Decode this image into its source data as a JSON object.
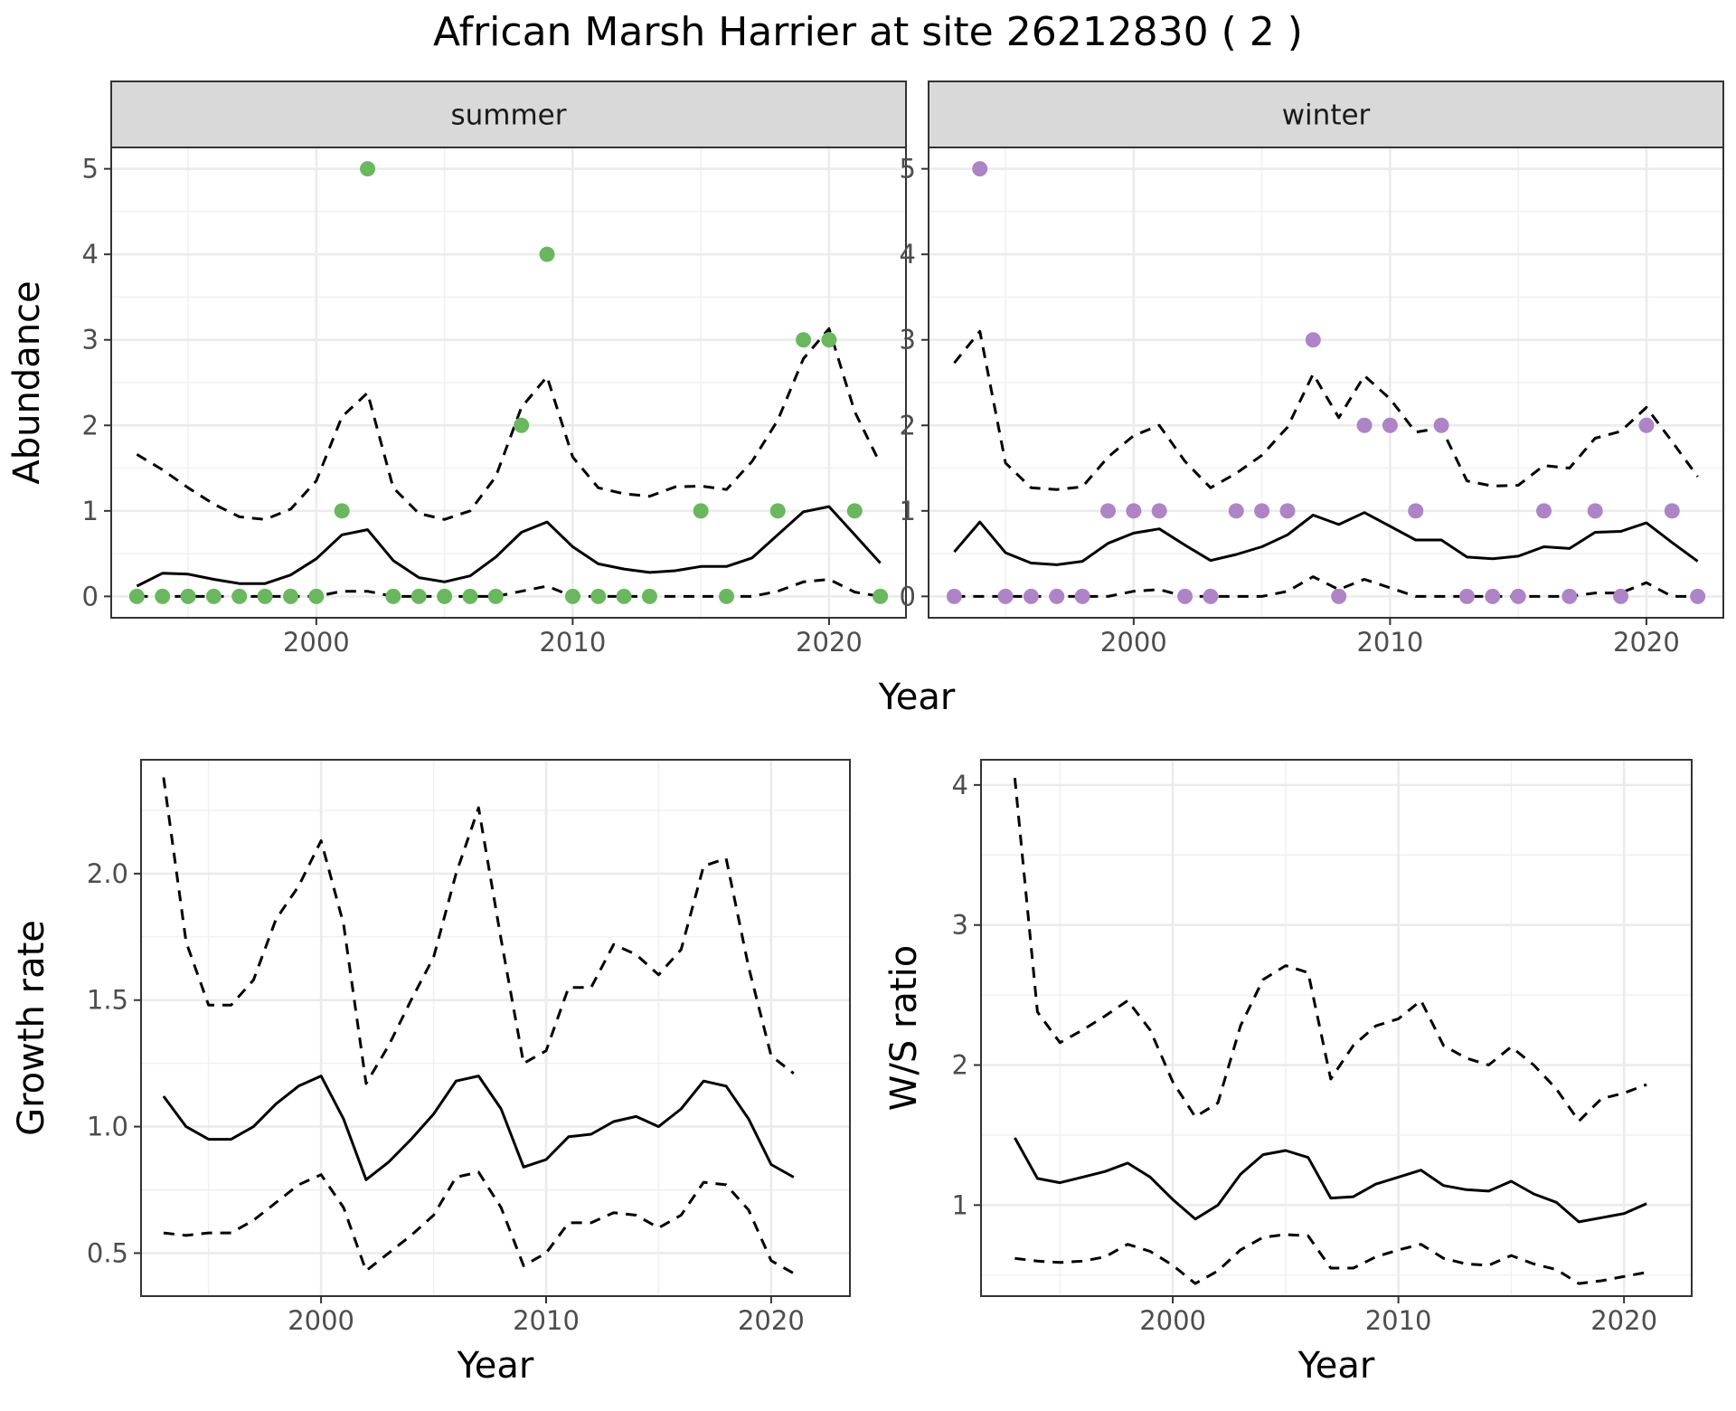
{
  "figure": {
    "title": "African Marsh Harrier at site 26212830 ( 2 )"
  },
  "chart_data": [
    {
      "type": "scatter",
      "panel": "summer",
      "strip_label": "summer",
      "xlabel": "Year",
      "ylabel": "Abundance",
      "xlim": [
        1992,
        2023
      ],
      "ylim": [
        -0.25,
        5.25
      ],
      "xticks": [
        2000,
        2010,
        2020
      ],
      "yticks": [
        0,
        1,
        2,
        3,
        4,
        5
      ],
      "point_color": "#6ab75f",
      "grid": true,
      "points": {
        "x": [
          1993,
          1994,
          1995,
          1996,
          1997,
          1998,
          1999,
          2000,
          2001,
          2002,
          2003,
          2004,
          2005,
          2006,
          2007,
          2008,
          2009,
          2010,
          2011,
          2012,
          2013,
          2015,
          2016,
          2018,
          2019,
          2020,
          2021,
          2022
        ],
        "y": [
          0,
          0,
          0,
          0,
          0,
          0,
          0,
          0,
          1,
          5,
          0,
          0,
          0,
          0,
          0,
          2,
          4,
          0,
          0,
          0,
          0,
          1,
          0,
          1,
          3,
          3,
          1,
          0
        ]
      },
      "lines": {
        "x": [
          1993,
          1994,
          1995,
          1996,
          1997,
          1998,
          1999,
          2000,
          2001,
          2002,
          2003,
          2004,
          2005,
          2006,
          2007,
          2008,
          2009,
          2010,
          2011,
          2012,
          2013,
          2014,
          2015,
          2016,
          2017,
          2018,
          2019,
          2020,
          2021,
          2022
        ],
        "mean": [
          0.12,
          0.27,
          0.26,
          0.2,
          0.15,
          0.15,
          0.25,
          0.44,
          0.72,
          0.78,
          0.42,
          0.22,
          0.17,
          0.24,
          0.46,
          0.75,
          0.87,
          0.58,
          0.38,
          0.32,
          0.28,
          0.3,
          0.35,
          0.35,
          0.45,
          0.72,
          0.99,
          1.05,
          0.72,
          0.39
        ],
        "upper": [
          1.66,
          1.48,
          1.27,
          1.08,
          0.93,
          0.9,
          1.02,
          1.35,
          2.1,
          2.38,
          1.27,
          0.97,
          0.9,
          1.0,
          1.4,
          2.21,
          2.57,
          1.63,
          1.27,
          1.2,
          1.17,
          1.28,
          1.29,
          1.25,
          1.58,
          2.06,
          2.78,
          3.13,
          2.16,
          1.55
        ],
        "lower": [
          0,
          0,
          0,
          0,
          0,
          0,
          0,
          0,
          0.06,
          0.06,
          0,
          0,
          0,
          0,
          0,
          0.06,
          0.12,
          0,
          0,
          0,
          0,
          0,
          0,
          0,
          0,
          0.06,
          0.17,
          0.2,
          0.05,
          0
        ]
      }
    },
    {
      "type": "scatter",
      "panel": "winter",
      "strip_label": "winter",
      "xlabel": "Year",
      "ylabel": "Abundance",
      "xlim": [
        1992,
        2023
      ],
      "ylim": [
        -0.25,
        5.25
      ],
      "xticks": [
        2000,
        2010,
        2020
      ],
      "yticks": [
        0,
        1,
        2,
        3,
        4,
        5
      ],
      "point_color": "#ad84c6",
      "grid": true,
      "points": {
        "x": [
          1993,
          1994,
          1995,
          1996,
          1997,
          1998,
          1999,
          2000,
          2001,
          2002,
          2003,
          2004,
          2005,
          2006,
          2007,
          2008,
          2009,
          2010,
          2011,
          2012,
          2013,
          2014,
          2015,
          2016,
          2017,
          2018,
          2019,
          2020,
          2021,
          2022
        ],
        "y": [
          0,
          5,
          0,
          0,
          0,
          0,
          1,
          1,
          1,
          0,
          0,
          1,
          1,
          1,
          3,
          0,
          2,
          2,
          1,
          2,
          0,
          0,
          0,
          1,
          0,
          1,
          0,
          2,
          1,
          0
        ]
      },
      "lines": {
        "x": [
          1993,
          1994,
          1995,
          1996,
          1997,
          1998,
          1999,
          2000,
          2001,
          2002,
          2003,
          2004,
          2005,
          2006,
          2007,
          2008,
          2009,
          2010,
          2011,
          2012,
          2013,
          2014,
          2015,
          2016,
          2017,
          2018,
          2019,
          2020,
          2021,
          2022
        ],
        "mean": [
          0.52,
          0.87,
          0.51,
          0.39,
          0.37,
          0.41,
          0.62,
          0.74,
          0.79,
          0.6,
          0.42,
          0.49,
          0.58,
          0.72,
          0.95,
          0.84,
          0.98,
          0.82,
          0.66,
          0.66,
          0.46,
          0.44,
          0.47,
          0.58,
          0.56,
          0.75,
          0.76,
          0.86,
          0.63,
          0.41
        ],
        "upper": [
          2.73,
          3.1,
          1.56,
          1.27,
          1.25,
          1.28,
          1.63,
          1.88,
          2.0,
          1.58,
          1.27,
          1.44,
          1.65,
          1.98,
          2.6,
          2.09,
          2.58,
          2.31,
          1.92,
          1.97,
          1.35,
          1.29,
          1.3,
          1.53,
          1.5,
          1.85,
          1.93,
          2.21,
          1.81,
          1.4
        ],
        "lower": [
          0,
          0,
          0,
          0,
          0,
          0,
          0,
          0.06,
          0.08,
          0,
          0,
          0,
          0,
          0.06,
          0.23,
          0.08,
          0.2,
          0.1,
          0,
          0,
          0,
          0,
          0,
          0,
          0,
          0.04,
          0.04,
          0.16,
          0,
          0
        ]
      }
    },
    {
      "type": "line",
      "panel": "growth",
      "xlabel": "Year",
      "ylabel": "Growth rate",
      "xlim": [
        1992,
        2023.5
      ],
      "ylim": [
        0.33,
        2.45
      ],
      "xticks": [
        2000,
        2010,
        2020
      ],
      "yticks": [
        0.5,
        1.0,
        1.5,
        2.0
      ],
      "ytick_labels": [
        "0.5",
        "1.0",
        "1.5",
        "2.0"
      ],
      "grid": true,
      "lines": {
        "x": [
          1993,
          1994,
          1995,
          1996,
          1997,
          1998,
          1999,
          2000,
          2001,
          2002,
          2003,
          2004,
          2005,
          2006,
          2007,
          2008,
          2009,
          2010,
          2011,
          2012,
          2013,
          2014,
          2015,
          2016,
          2017,
          2018,
          2019,
          2020,
          2021
        ],
        "mean": [
          1.12,
          1.0,
          0.95,
          0.95,
          1.0,
          1.09,
          1.16,
          1.2,
          1.03,
          0.79,
          0.86,
          0.95,
          1.05,
          1.18,
          1.2,
          1.07,
          0.84,
          0.87,
          0.96,
          0.97,
          1.02,
          1.04,
          1.0,
          1.07,
          1.18,
          1.16,
          1.03,
          0.85,
          0.8
        ],
        "upper": [
          2.38,
          1.73,
          1.48,
          1.48,
          1.58,
          1.82,
          1.95,
          2.13,
          1.8,
          1.17,
          1.32,
          1.5,
          1.67,
          2.0,
          2.26,
          1.74,
          1.25,
          1.3,
          1.55,
          1.55,
          1.72,
          1.68,
          1.6,
          1.7,
          2.03,
          2.06,
          1.63,
          1.28,
          1.21
        ],
        "lower": [
          0.58,
          0.57,
          0.58,
          0.58,
          0.63,
          0.7,
          0.77,
          0.81,
          0.68,
          0.43,
          0.5,
          0.57,
          0.65,
          0.8,
          0.82,
          0.68,
          0.45,
          0.5,
          0.62,
          0.62,
          0.66,
          0.65,
          0.6,
          0.65,
          0.78,
          0.77,
          0.67,
          0.47,
          0.42
        ]
      }
    },
    {
      "type": "line",
      "panel": "ratio",
      "xlabel": "Year",
      "ylabel": "W/S ratio",
      "xlim": [
        1991.5,
        2023
      ],
      "ylim": [
        0.35,
        4.18
      ],
      "xticks": [
        2000,
        2010,
        2020
      ],
      "yticks": [
        1,
        2,
        3,
        4
      ],
      "ytick_labels": [
        "1",
        "2",
        "3",
        "4"
      ],
      "grid": true,
      "lines": {
        "x": [
          1993,
          1994,
          1995,
          1996,
          1997,
          1998,
          1999,
          2000,
          2001,
          2002,
          2003,
          2004,
          2005,
          2006,
          2007,
          2008,
          2009,
          2010,
          2011,
          2012,
          2013,
          2014,
          2015,
          2016,
          2017,
          2018,
          2019,
          2020,
          2021
        ],
        "mean": [
          1.48,
          1.19,
          1.16,
          1.2,
          1.24,
          1.3,
          1.2,
          1.04,
          0.9,
          1.0,
          1.22,
          1.36,
          1.39,
          1.34,
          1.05,
          1.06,
          1.15,
          1.2,
          1.25,
          1.14,
          1.11,
          1.1,
          1.17,
          1.08,
          1.02,
          0.88,
          0.91,
          0.94,
          1.01
        ],
        "upper": [
          4.05,
          2.38,
          2.16,
          2.25,
          2.35,
          2.46,
          2.25,
          1.88,
          1.63,
          1.73,
          2.28,
          2.61,
          2.71,
          2.66,
          1.9,
          2.14,
          2.28,
          2.33,
          2.46,
          2.14,
          2.05,
          2.0,
          2.13,
          2.0,
          1.83,
          1.6,
          1.76,
          1.8,
          1.86
        ],
        "lower": [
          0.62,
          0.6,
          0.59,
          0.6,
          0.63,
          0.72,
          0.67,
          0.57,
          0.44,
          0.53,
          0.68,
          0.77,
          0.79,
          0.78,
          0.55,
          0.55,
          0.63,
          0.68,
          0.72,
          0.62,
          0.58,
          0.57,
          0.64,
          0.58,
          0.54,
          0.44,
          0.46,
          0.49,
          0.52
        ]
      }
    }
  ]
}
